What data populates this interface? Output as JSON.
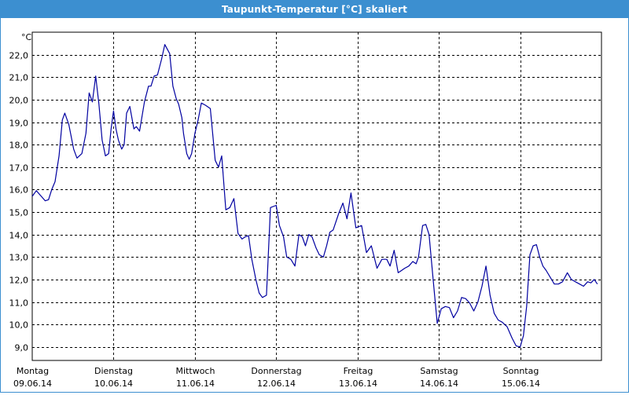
{
  "window": {
    "title": "Taupunkt-Temperatur [°C] skaliert"
  },
  "colors": {
    "titlebar": "#3c8fd0",
    "line": "#0000a0",
    "grid": "#000000",
    "background": "#ffffff"
  },
  "chart_data": {
    "type": "line",
    "title": "Taupunkt-Temperatur [°C] skaliert",
    "ylabel": "°C",
    "xlabel": "",
    "ylim": [
      8.4,
      23.0
    ],
    "yticks": [
      9.0,
      10.0,
      11.0,
      12.0,
      13.0,
      14.0,
      15.0,
      16.0,
      17.0,
      18.0,
      19.0,
      20.0,
      21.0,
      22.0
    ],
    "ytick_labels": [
      "9,0",
      "10,0",
      "11,0",
      "12,0",
      "13,0",
      "14,0",
      "15,0",
      "16,0",
      "17,0",
      "18,0",
      "19,0",
      "20,0",
      "21,0",
      "22,0"
    ],
    "xlim": [
      0,
      7.0
    ],
    "xticks": [
      0,
      1,
      2,
      3,
      4,
      5,
      6
    ],
    "xtick_labels": [
      {
        "day": "Montag",
        "date": "09.06.14"
      },
      {
        "day": "Dienstag",
        "date": "10.06.14"
      },
      {
        "day": "Mittwoch",
        "date": "11.06.14"
      },
      {
        "day": "Donnerstag",
        "date": "12.06.14"
      },
      {
        "day": "Freitag",
        "date": "13.06.14"
      },
      {
        "day": "Samstag",
        "date": "14.06.14"
      },
      {
        "day": "Sonntag",
        "date": "15.06.14"
      }
    ],
    "grid": true,
    "series": [
      {
        "x": [
          0.0,
          0.05,
          0.1,
          0.16,
          0.2,
          0.24,
          0.28,
          0.33,
          0.37,
          0.4,
          0.45,
          0.51,
          0.55,
          0.61,
          0.66,
          0.7,
          0.74,
          0.78,
          0.82,
          0.86,
          0.9,
          0.94,
          0.97,
          1.0,
          1.03,
          1.06,
          1.1,
          1.13,
          1.16,
          1.2,
          1.25,
          1.28,
          1.32,
          1.38,
          1.43,
          1.46,
          1.5,
          1.54,
          1.59,
          1.63,
          1.69,
          1.73,
          1.77,
          1.8,
          1.84,
          1.86,
          1.9,
          1.93,
          1.96,
          2.0,
          2.04,
          2.08,
          2.13,
          2.19,
          2.25,
          2.29,
          2.33,
          2.38,
          2.43,
          2.48,
          2.53,
          2.58,
          2.62,
          2.66,
          2.7,
          2.75,
          2.79,
          2.83,
          2.88,
          2.93,
          3.0,
          3.04,
          3.09,
          3.13,
          3.18,
          3.23,
          3.28,
          3.32,
          3.36,
          3.4,
          3.44,
          3.49,
          3.53,
          3.58,
          3.62,
          3.66,
          3.7,
          3.77,
          3.82,
          3.87,
          3.92,
          3.98,
          4.05,
          4.11,
          4.17,
          4.24,
          4.3,
          4.36,
          4.4,
          4.45,
          4.5,
          4.54,
          4.58,
          4.63,
          4.68,
          4.72,
          4.75,
          4.8,
          4.84,
          4.88,
          4.93,
          4.98,
          5.03,
          5.08,
          5.13,
          5.18,
          5.23,
          5.28,
          5.33,
          5.38,
          5.43,
          5.48,
          5.53,
          5.58,
          5.63,
          5.68,
          5.73,
          5.78,
          5.84,
          5.9,
          5.95,
          6.0,
          6.04,
          6.08,
          6.12,
          6.16,
          6.2,
          6.24,
          6.28,
          6.32,
          6.37,
          6.42,
          6.47,
          6.52,
          6.58,
          6.63,
          6.68,
          6.73,
          6.78,
          6.83,
          6.87,
          6.91,
          6.95
        ],
        "values": [
          15.7,
          15.95,
          15.75,
          15.5,
          15.55,
          16.0,
          16.35,
          17.5,
          19.1,
          19.4,
          18.9,
          17.8,
          17.4,
          17.6,
          18.5,
          20.3,
          19.9,
          21.05,
          19.8,
          18.2,
          17.5,
          17.6,
          18.7,
          19.5,
          18.7,
          18.2,
          17.8,
          18.0,
          19.4,
          19.7,
          18.7,
          18.8,
          18.6,
          19.9,
          20.6,
          20.6,
          21.05,
          21.1,
          21.8,
          22.45,
          22.05,
          20.6,
          20.05,
          19.8,
          19.2,
          18.5,
          17.6,
          17.35,
          17.6,
          18.5,
          19.1,
          19.85,
          19.75,
          19.6,
          17.3,
          17.0,
          17.5,
          15.1,
          15.2,
          15.6,
          14.05,
          13.8,
          13.9,
          13.95,
          12.9,
          12.0,
          11.4,
          11.2,
          11.3,
          15.2,
          15.3,
          14.4,
          13.9,
          13.0,
          12.9,
          12.6,
          14.0,
          13.9,
          13.5,
          14.0,
          13.9,
          13.4,
          13.1,
          13.0,
          13.5,
          14.1,
          14.2,
          14.95,
          15.4,
          14.7,
          15.85,
          14.3,
          14.4,
          13.2,
          13.5,
          12.5,
          12.9,
          12.9,
          12.6,
          13.3,
          12.3,
          12.4,
          12.5,
          12.6,
          12.8,
          12.7,
          13.0,
          14.4,
          14.45,
          14.0,
          12.0,
          10.05,
          10.7,
          10.8,
          10.75,
          10.3,
          10.6,
          11.2,
          11.15,
          10.95,
          10.6,
          11.0,
          11.7,
          12.6,
          11.3,
          10.5,
          10.2,
          10.1,
          9.9,
          9.4,
          9.05,
          9.0,
          9.5,
          10.8,
          13.1,
          13.5,
          13.55,
          13.0,
          12.6,
          12.4,
          12.1,
          11.8,
          11.8,
          11.9,
          12.3,
          12.0,
          11.9,
          11.8,
          11.7,
          11.9,
          11.85,
          12.0,
          11.8
        ]
      }
    ]
  }
}
